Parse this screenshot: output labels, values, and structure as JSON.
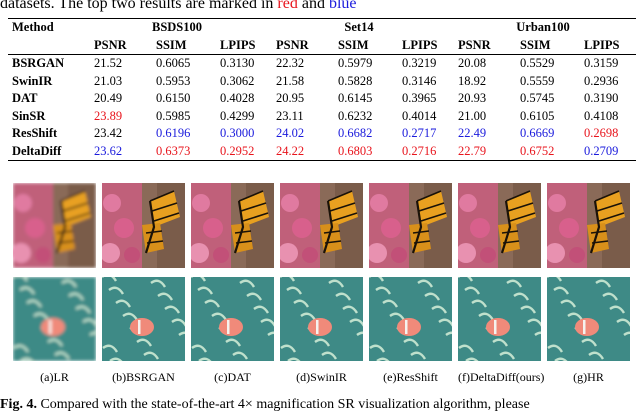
{
  "caption_top": {
    "text_before": "datasets. The top two results are marked in ",
    "red_word": "red",
    "mid": " and ",
    "blue_word": "blue"
  },
  "table": {
    "method_header": "Method",
    "groups": [
      "BSDS100",
      "Set14",
      "Urban100"
    ],
    "metrics": [
      "PSNR",
      "SSIM",
      "LPIPS"
    ],
    "rows": [
      {
        "method": "BSRGAN",
        "values": [
          "21.52",
          "0.6065",
          "0.3130",
          "22.32",
          "0.5979",
          "0.3219",
          "20.08",
          "0.5529",
          "0.3159"
        ],
        "colors": [
          "",
          "",
          "",
          "",
          "",
          "",
          "",
          "",
          ""
        ]
      },
      {
        "method": "SwinIR",
        "values": [
          "21.03",
          "0.5953",
          "0.3062",
          "21.58",
          "0.5828",
          "0.3146",
          "18.92",
          "0.5559",
          "0.2936"
        ],
        "colors": [
          "",
          "",
          "",
          "",
          "",
          "",
          "",
          "",
          ""
        ]
      },
      {
        "method": "DAT",
        "values": [
          "20.49",
          "0.6150",
          "0.4028",
          "20.95",
          "0.6145",
          "0.3965",
          "20.93",
          "0.5745",
          "0.3190"
        ],
        "colors": [
          "",
          "",
          "",
          "",
          "",
          "",
          "",
          "",
          ""
        ]
      },
      {
        "method": "SinSR",
        "values": [
          "23.89",
          "0.5985",
          "0.4299",
          "23.11",
          "0.6232",
          "0.4014",
          "21.00",
          "0.6105",
          "0.4108"
        ],
        "colors": [
          "red",
          "",
          "",
          "",
          "",
          "",
          "",
          "",
          ""
        ]
      },
      {
        "method": "ResShift",
        "values": [
          "23.42",
          "0.6196",
          "0.3000",
          "24.02",
          "0.6682",
          "0.2717",
          "22.49",
          "0.6669",
          "0.2698"
        ],
        "colors": [
          "",
          "blue",
          "blue",
          "blue",
          "blue",
          "blue",
          "blue",
          "blue",
          "red"
        ]
      },
      {
        "method": "DeltaDiff",
        "values": [
          "23.62",
          "0.6373",
          "0.2952",
          "24.22",
          "0.6803",
          "0.2716",
          "22.79",
          "0.6752",
          "0.2709"
        ],
        "colors": [
          "blue",
          "red",
          "red",
          "red",
          "red",
          "red",
          "red",
          "red",
          "blue"
        ]
      }
    ]
  },
  "figure_labels": [
    "(a)LR",
    "(b)BSRGAN",
    "(c)DAT",
    "(d)SwinIR",
    "(e)ResShift",
    "(f)DeltaDiff(ours)",
    "(g)HR"
  ],
  "caption_bottom": {
    "prefix": "Fig. 4.",
    "text": " Compared with the state-of-the-art 4× magnification SR visualization algorithm, please"
  },
  "colors": {
    "red": "#e8141c",
    "blue": "#1a1adc"
  }
}
